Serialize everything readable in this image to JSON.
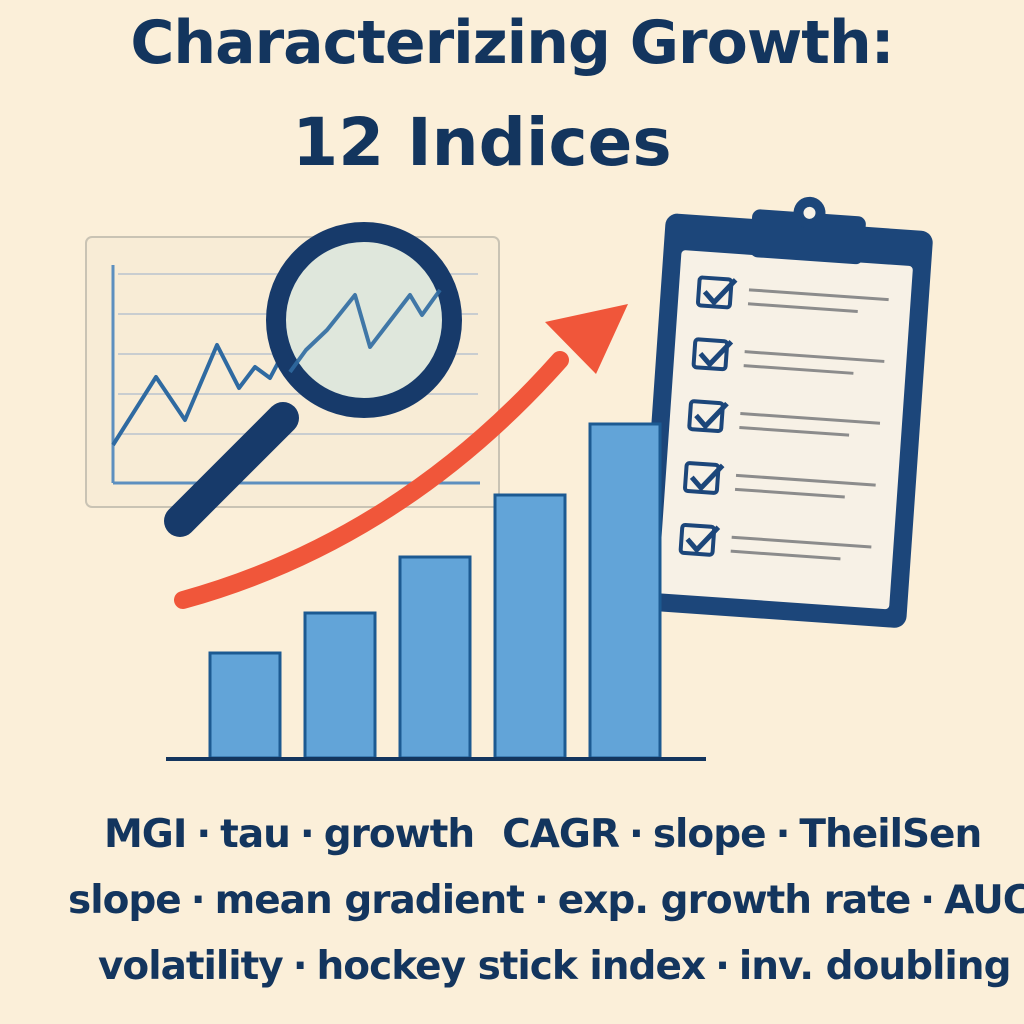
{
  "title": {
    "line1": "Characterizing Growth:",
    "line2": "12 Indices"
  },
  "indices": {
    "row1": [
      "MGI",
      "tau",
      "growth",
      "CAGR",
      "slope",
      "TheilSen"
    ],
    "row2": [
      "slope",
      "mean gradient",
      "exp. growth rate",
      "AUC"
    ],
    "row3": [
      "volatility",
      "hockey stick index",
      "inv. doubling"
    ],
    "separator": "·"
  },
  "illustration": {
    "bar_values": [
      1,
      1.6,
      2.4,
      3.3,
      4.5
    ],
    "checklist_items": 5,
    "icons": [
      "line-chart-panel",
      "magnifying-glass-icon",
      "growth-arrow-icon",
      "clipboard-checklist-icon",
      "bar-chart"
    ]
  },
  "colors": {
    "background": "#fbefd9",
    "navy": "#13355e",
    "bar": "#62a4d8",
    "arrow": "#f0563a",
    "lens": "#dfe7dc"
  }
}
